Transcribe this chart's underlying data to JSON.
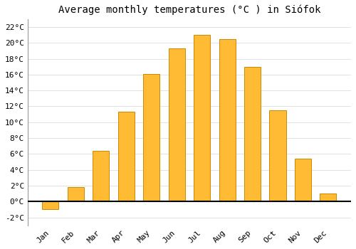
{
  "title": "Average monthly temperatures (°C ) in Siófok",
  "months": [
    "Jan",
    "Feb",
    "Mar",
    "Apr",
    "May",
    "Jun",
    "Jul",
    "Aug",
    "Sep",
    "Oct",
    "Nov",
    "Dec"
  ],
  "values": [
    -1.0,
    1.8,
    6.4,
    11.3,
    16.1,
    19.3,
    21.0,
    20.5,
    17.0,
    11.5,
    5.4,
    1.0
  ],
  "bar_color": "#FFBB33",
  "bar_edge_color": "#CC8800",
  "background_color": "#FFFFFF",
  "plot_bg_color": "#FFFFFF",
  "grid_color": "#DDDDDD",
  "zero_line_color": "#000000",
  "ylim": [
    -3,
    23
  ],
  "yticks": [
    -2,
    0,
    2,
    4,
    6,
    8,
    10,
    12,
    14,
    16,
    18,
    20,
    22
  ],
  "ytick_labels": [
    "-2°C",
    "0°C",
    "2°C",
    "4°C",
    "6°C",
    "8°C",
    "10°C",
    "12°C",
    "14°C",
    "16°C",
    "18°C",
    "20°C",
    "22°C"
  ],
  "title_fontsize": 10,
  "tick_fontsize": 8,
  "figsize": [
    5.0,
    3.5
  ],
  "dpi": 100,
  "bar_width": 0.65
}
